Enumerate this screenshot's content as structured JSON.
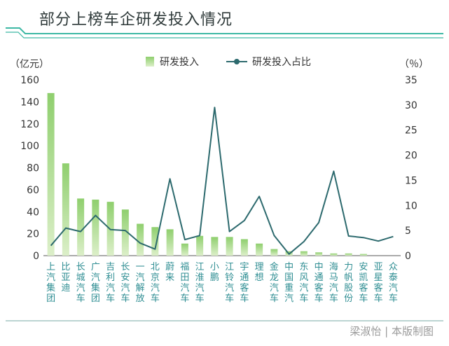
{
  "title": "部分上榜车企研发投入情况",
  "credit": "梁淑怡 | 本版制图",
  "colors": {
    "bar_top": "#8fcf6e",
    "bar_bottom": "#dcefc9",
    "line": "#2d6a6e",
    "deco": "#3db8a4",
    "text_cat": "#2f8e93"
  },
  "chart_data": {
    "type": "bar",
    "title": "部分上榜车企研发投入情况",
    "categories": [
      "上汽集团",
      "比亚迪",
      "长城汽车",
      "广汽集团",
      "吉利汽车",
      "长安汽车",
      "一汽解放",
      "北京汽车",
      "蔚来",
      "福田汽车",
      "江淮汽车",
      "小鹏",
      "江铃汽车",
      "宇通客车",
      "理想",
      "金龙汽车",
      "中国重汽",
      "东风汽车",
      "中通客车",
      "海马汽车",
      "力帆股份",
      "安凯客车",
      "亚星客车",
      "众泰汽车"
    ],
    "y_left_unit": "（亿元）",
    "y_right_unit": "（％）",
    "ylim_left": [
      0,
      160
    ],
    "ylim_right": [
      0,
      35
    ],
    "yticks_left": [
      "0",
      "20",
      "40",
      "60",
      "80",
      "100",
      "120",
      "140",
      "160"
    ],
    "yticks_right": [
      "0",
      "5",
      "10",
      "15",
      "20",
      "25",
      "30",
      "35"
    ],
    "series": [
      {
        "name": "研发投入",
        "type": "bar",
        "axis": "left",
        "values": [
          148,
          84,
          52,
          51,
          49,
          42,
          29,
          26,
          24,
          11,
          18,
          17,
          17,
          15,
          11,
          6,
          4,
          4,
          3,
          2,
          2,
          1.5,
          0,
          0
        ]
      },
      {
        "name": "研发投入占比",
        "type": "line",
        "axis": "right",
        "values": [
          2,
          5.5,
          4.8,
          8,
          5.2,
          5,
          2.5,
          1.3,
          15.3,
          3.2,
          4,
          29.5,
          4.8,
          7,
          11.8,
          4,
          0.3,
          2.8,
          6.6,
          16.8,
          3.9,
          3.6,
          2.9,
          3.8
        ]
      }
    ],
    "legend": "top-center",
    "grid": false
  }
}
